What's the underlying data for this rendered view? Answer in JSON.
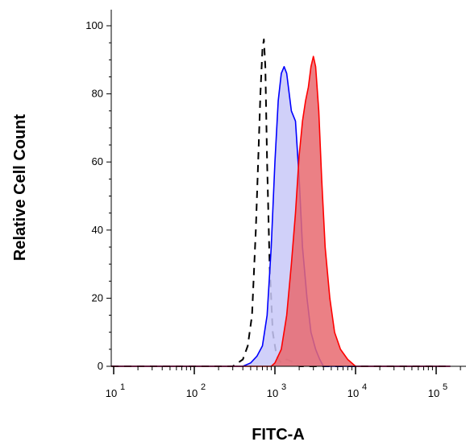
{
  "chart_data": {
    "type": "area",
    "title": "",
    "xlabel": "FITC-A",
    "ylabel": "Relative Cell Count",
    "xscale": "log",
    "xlim": [
      5,
      150000
    ],
    "ylim": [
      0,
      100
    ],
    "grid": false,
    "legend": "none",
    "x_ticks": [
      {
        "base": "10",
        "exp": "1",
        "value": 10
      },
      {
        "base": "10",
        "exp": "2",
        "value": 100
      },
      {
        "base": "10",
        "exp": "3",
        "value": 1000
      },
      {
        "base": "10",
        "exp": "4",
        "value": 10000
      },
      {
        "base": "10",
        "exp": "5",
        "value": 100000
      }
    ],
    "y_ticks": [
      "0",
      "20",
      "40",
      "60",
      "80",
      "100"
    ],
    "series": [
      {
        "style": "dashed",
        "color": "#000000",
        "fill": "none",
        "x": [
          5,
          300,
          400,
          460,
          520,
          580,
          620,
          660,
          700,
          730,
          760,
          800,
          860,
          940,
          1050,
          1200,
          1400,
          1600,
          1800,
          2000,
          150000
        ],
        "y": [
          0,
          0,
          2,
          6,
          15,
          40,
          60,
          80,
          93,
          96,
          88,
          60,
          30,
          10,
          3,
          1,
          2,
          1.5,
          0.5,
          0,
          0
        ]
      },
      {
        "style": "solid",
        "color": "#0000ff",
        "fill": "#c8c8f8",
        "x": [
          5,
          400,
          500,
          600,
          700,
          800,
          900,
          1000,
          1100,
          1200,
          1300,
          1400,
          1600,
          1800,
          2000,
          2200,
          2500,
          2800,
          3200,
          3600,
          4000,
          150000
        ],
        "y": [
          0,
          0,
          1,
          3,
          6,
          15,
          35,
          60,
          78,
          86,
          88,
          86,
          75,
          72,
          55,
          35,
          20,
          10,
          5,
          2,
          0,
          0
        ]
      },
      {
        "style": "solid",
        "color": "#ff0000",
        "fill": "#e86a70",
        "x": [
          5,
          900,
          1000,
          1200,
          1400,
          1600,
          1800,
          2000,
          2200,
          2400,
          2600,
          2800,
          3000,
          3200,
          3500,
          3800,
          4200,
          4800,
          5500,
          6500,
          8000,
          10000,
          150000
        ],
        "y": [
          0,
          0,
          1,
          5,
          15,
          30,
          45,
          62,
          72,
          78,
          82,
          88,
          91,
          88,
          75,
          55,
          35,
          20,
          10,
          5,
          2,
          0,
          0
        ]
      }
    ]
  }
}
